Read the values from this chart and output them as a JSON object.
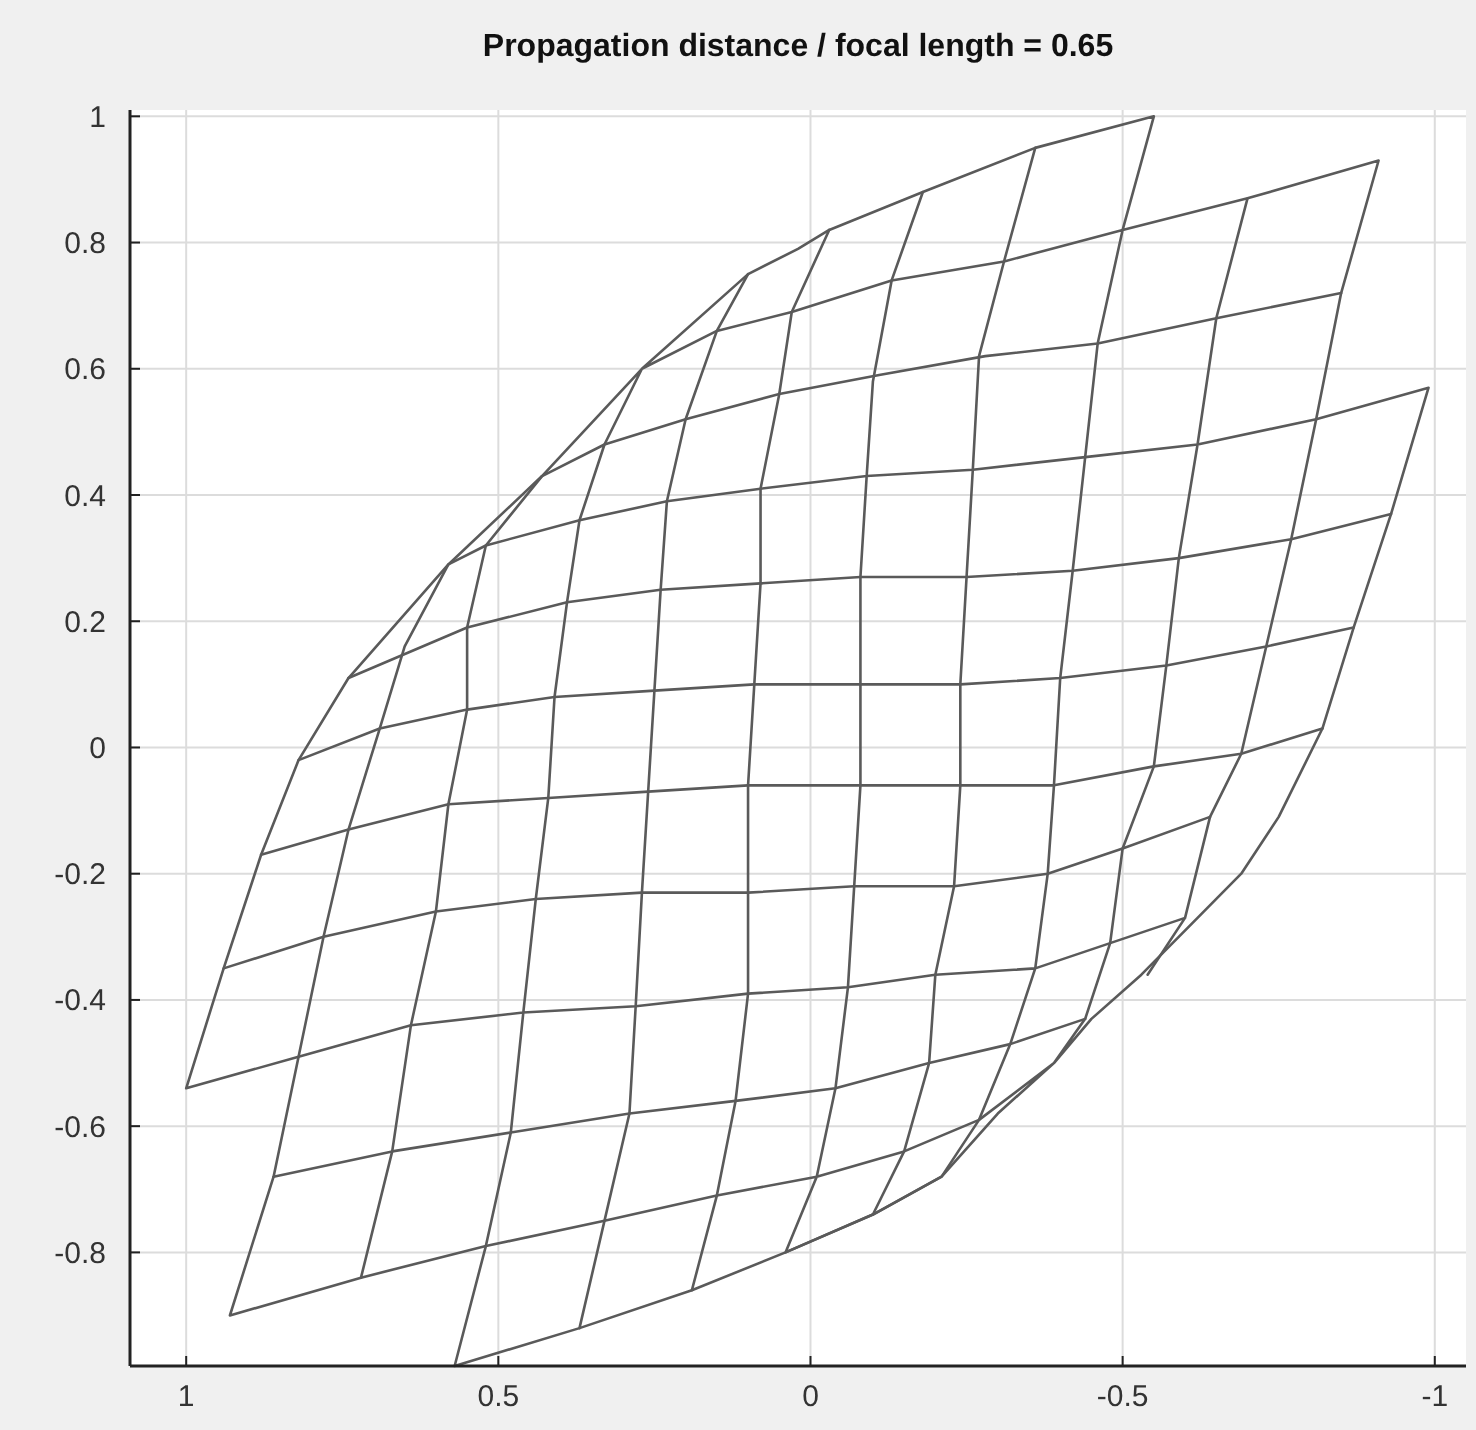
{
  "chart_data": {
    "type": "line",
    "title": "Propagation distance / focal length = 0.65",
    "xlim": [
      1.09,
      -1.05
    ],
    "ylim": [
      -0.98,
      1.01
    ],
    "xticks": [
      1,
      0.5,
      0,
      -0.5,
      -1
    ],
    "yticks": [
      -0.8,
      -0.6,
      -0.4,
      -0.2,
      0,
      0.2,
      0.4,
      0.6,
      0.8,
      1
    ],
    "grid": true,
    "marker": "none",
    "line_style": "solid",
    "series": [
      {
        "color": "#5a5a5a",
        "x": [
          -0.6,
          -0.48,
          -0.36,
          -0.2,
          -0.06,
          0.1,
          0.28,
          0.46,
          0.64,
          0.82,
          1.0,
          0.94,
          0.88,
          0.82,
          0.74,
          0.58,
          0.43,
          0.27,
          0.1,
          0.02,
          -0.03,
          -0.18,
          -0.36,
          -0.55,
          -0.5,
          -0.46,
          -0.44,
          -0.42,
          -0.4,
          -0.39,
          -0.38,
          -0.36,
          -0.32,
          -0.27,
          -0.21,
          -0.1,
          0.04,
          0.19,
          0.37,
          0.57,
          0.52,
          0.48,
          0.46,
          0.44,
          0.42,
          0.41,
          0.39,
          0.37,
          0.33,
          0.27,
          0.15,
          0.03,
          -0.13,
          -0.31,
          -0.5,
          -0.7,
          -0.91,
          -0.85,
          -0.81,
          -0.77,
          -0.73,
          -0.69,
          -0.64,
          -0.6,
          -0.54
        ],
        "values": [
          -0.27,
          -0.31,
          -0.35,
          -0.36,
          -0.38,
          -0.39,
          -0.41,
          -0.42,
          -0.44,
          -0.49,
          -0.54,
          -0.35,
          -0.17,
          -0.02,
          0.11,
          0.29,
          0.43,
          0.6,
          0.75,
          0.79,
          0.82,
          0.88,
          0.95,
          1.0,
          0.82,
          0.64,
          0.46,
          0.28,
          0.11,
          -0.06,
          -0.2,
          -0.35,
          -0.47,
          -0.59,
          -0.68,
          -0.74,
          -0.8,
          -0.86,
          -0.92,
          -0.98,
          -0.79,
          -0.61,
          -0.42,
          -0.24,
          -0.08,
          0.08,
          0.23,
          0.36,
          0.48,
          0.6,
          0.66,
          0.69,
          0.74,
          0.77,
          0.82,
          0.87,
          0.93,
          0.72,
          0.52,
          0.33,
          0.16,
          -0.01,
          -0.11,
          -0.27,
          -0.36
        ]
      },
      {
        "color": "#5a5a5a",
        "x": [
          -0.7,
          -0.65,
          -0.62,
          -0.59,
          -0.57,
          -0.55,
          -0.5,
          -0.48,
          -0.44,
          -0.39,
          -0.27,
          -0.15,
          -0.01,
          0.15,
          0.33,
          0.52,
          0.72,
          0.93,
          0.86,
          0.82,
          0.78,
          0.74,
          0.69,
          0.65,
          0.58,
          0.52,
          0.37,
          0.23,
          0.08,
          -0.09,
          -0.26,
          -0.44,
          -0.62,
          -0.81,
          -0.99,
          -0.93,
          -0.87,
          -0.82,
          -0.75,
          -0.69,
          -0.62,
          -0.53,
          -0.45,
          -0.39,
          -0.3,
          -0.21,
          -0.1,
          0.04,
          -0.01,
          -0.04,
          -0.06,
          -0.07,
          -0.08,
          -0.08,
          -0.08,
          -0.09,
          -0.1,
          -0.13,
          -0.18
        ],
        "values": [
          0.87,
          0.68,
          0.48,
          0.3,
          0.13,
          -0.03,
          -0.16,
          -0.31,
          -0.43,
          -0.5,
          -0.59,
          -0.64,
          -0.68,
          -0.71,
          -0.75,
          -0.79,
          -0.84,
          -0.9,
          -0.68,
          -0.49,
          -0.3,
          -0.13,
          0.03,
          0.16,
          0.29,
          0.32,
          0.36,
          0.39,
          0.41,
          0.43,
          0.44,
          0.46,
          0.48,
          0.52,
          0.57,
          0.37,
          0.19,
          0.03,
          -0.11,
          -0.2,
          -0.27,
          -0.36,
          -0.43,
          -0.5,
          -0.58,
          -0.68,
          -0.74,
          -0.8,
          -0.68,
          -0.54,
          -0.38,
          -0.22,
          -0.06,
          0.1,
          0.27,
          0.43,
          0.58,
          0.74,
          0.88
        ]
      },
      {
        "color": "#5a5a5a",
        "x": [
          0.72,
          0.67,
          0.64,
          0.6,
          0.58,
          0.55,
          0.55,
          0.52,
          0.43,
          0.33,
          0.2,
          0.05,
          -0.11,
          -0.28,
          -0.46,
          -0.65,
          -0.85
        ],
        "values": [
          -0.84,
          -0.64,
          -0.44,
          -0.26,
          -0.09,
          0.06,
          0.19,
          0.32,
          0.43,
          0.48,
          0.52,
          0.56,
          0.59,
          0.62,
          0.64,
          0.68,
          0.72
        ]
      },
      {
        "color": "#5a5a5a",
        "x": [
          0.74,
          0.55,
          0.39,
          0.24,
          0.08,
          -0.08,
          -0.25,
          -0.42,
          -0.59,
          -0.77,
          -0.93
        ],
        "values": [
          0.11,
          0.19,
          0.23,
          0.25,
          0.26,
          0.27,
          0.27,
          0.28,
          0.3,
          0.33,
          0.37
        ]
      },
      {
        "color": "#5a5a5a",
        "x": [
          0.82,
          0.69,
          0.55,
          0.41,
          0.25,
          0.09,
          -0.08,
          -0.24,
          -0.4,
          -0.57,
          -0.73,
          -0.87
        ],
        "values": [
          -0.02,
          0.03,
          0.06,
          0.08,
          0.09,
          0.1,
          0.1,
          0.1,
          0.11,
          0.13,
          0.16,
          0.19
        ]
      },
      {
        "color": "#5a5a5a",
        "x": [
          0.88,
          0.74,
          0.58,
          0.42,
          0.26,
          0.1,
          -0.08,
          -0.24,
          -0.39,
          -0.55,
          -0.69,
          -0.82
        ],
        "values": [
          -0.17,
          -0.13,
          -0.09,
          -0.08,
          -0.07,
          -0.06,
          -0.06,
          -0.06,
          -0.06,
          -0.03,
          -0.01,
          0.03
        ]
      },
      {
        "color": "#5a5a5a",
        "x": [
          0.94,
          0.78,
          0.6,
          0.44,
          0.27,
          0.1,
          -0.07,
          -0.23,
          -0.38,
          -0.5,
          -0.64
        ],
        "values": [
          -0.35,
          -0.3,
          -0.26,
          -0.24,
          -0.23,
          -0.23,
          -0.22,
          -0.22,
          -0.2,
          -0.16,
          -0.11
        ]
      },
      {
        "color": "#5a5a5a",
        "x": [
          0.86,
          0.67,
          0.48,
          0.29,
          0.12,
          -0.04,
          -0.19,
          -0.32,
          -0.44
        ],
        "values": [
          -0.68,
          -0.64,
          -0.61,
          -0.58,
          -0.56,
          -0.54,
          -0.5,
          -0.47,
          -0.43
        ]
      },
      {
        "color": "#5a5a5a",
        "x": [
          0.37,
          0.33,
          0.29,
          0.28,
          0.27,
          0.26,
          0.25,
          0.24,
          0.23,
          0.2,
          0.15,
          0.1
        ],
        "values": [
          -0.92,
          -0.75,
          -0.58,
          -0.41,
          -0.23,
          -0.07,
          0.09,
          0.25,
          0.39,
          0.52,
          0.66,
          0.75
        ]
      },
      {
        "color": "#5a5a5a",
        "x": [
          0.19,
          0.15,
          0.12,
          0.1,
          0.1,
          0.1,
          0.09,
          0.08,
          0.08,
          0.05,
          0.03,
          -0.03
        ],
        "values": [
          -0.86,
          -0.71,
          -0.56,
          -0.39,
          -0.23,
          -0.06,
          0.1,
          0.26,
          0.41,
          0.56,
          0.69,
          0.82
        ]
      },
      {
        "color": "#5a5a5a",
        "x": [
          -0.1,
          -0.15,
          -0.19,
          -0.2,
          -0.23,
          -0.24,
          -0.24,
          -0.25,
          -0.26,
          -0.27,
          -0.31,
          -0.36
        ],
        "values": [
          -0.74,
          -0.64,
          -0.5,
          -0.36,
          -0.22,
          -0.06,
          0.1,
          0.27,
          0.44,
          0.62,
          0.77,
          0.95
        ]
      }
    ]
  }
}
